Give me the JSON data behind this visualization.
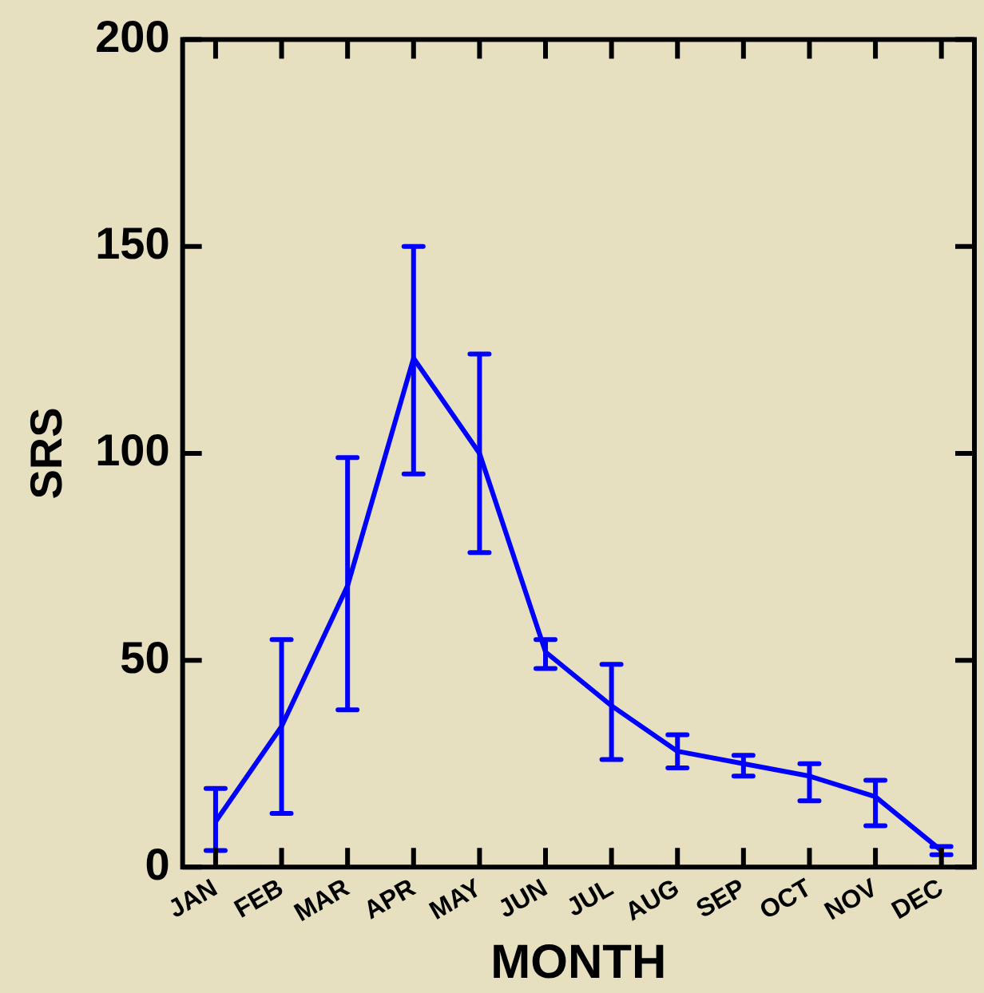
{
  "chart_data": {
    "type": "line",
    "xlabel": "MONTH",
    "ylabel": "SRS",
    "categories": [
      "JAN",
      "FEB",
      "MAR",
      "APR",
      "MAY",
      "JUN",
      "JUL",
      "AUG",
      "SEP",
      "OCT",
      "NOV",
      "DEC"
    ],
    "series": [
      {
        "color": "#0000ff",
        "values": [
          11,
          34,
          68,
          123,
          100,
          52,
          39,
          28,
          25,
          22,
          17,
          4
        ],
        "errors": [
          [
            4,
            19
          ],
          [
            13,
            55
          ],
          [
            38,
            99
          ],
          [
            95,
            150
          ],
          [
            76,
            124
          ],
          [
            48,
            55
          ],
          [
            26,
            49
          ],
          [
            24,
            32
          ],
          [
            22,
            27
          ],
          [
            16,
            25
          ],
          [
            10,
            21
          ],
          [
            3,
            5
          ]
        ]
      }
    ],
    "ylim": [
      0,
      200
    ],
    "yticks": [
      0,
      50,
      100,
      150,
      200
    ],
    "grid": false,
    "legend": false,
    "marker": "none",
    "line_style": "solid"
  }
}
